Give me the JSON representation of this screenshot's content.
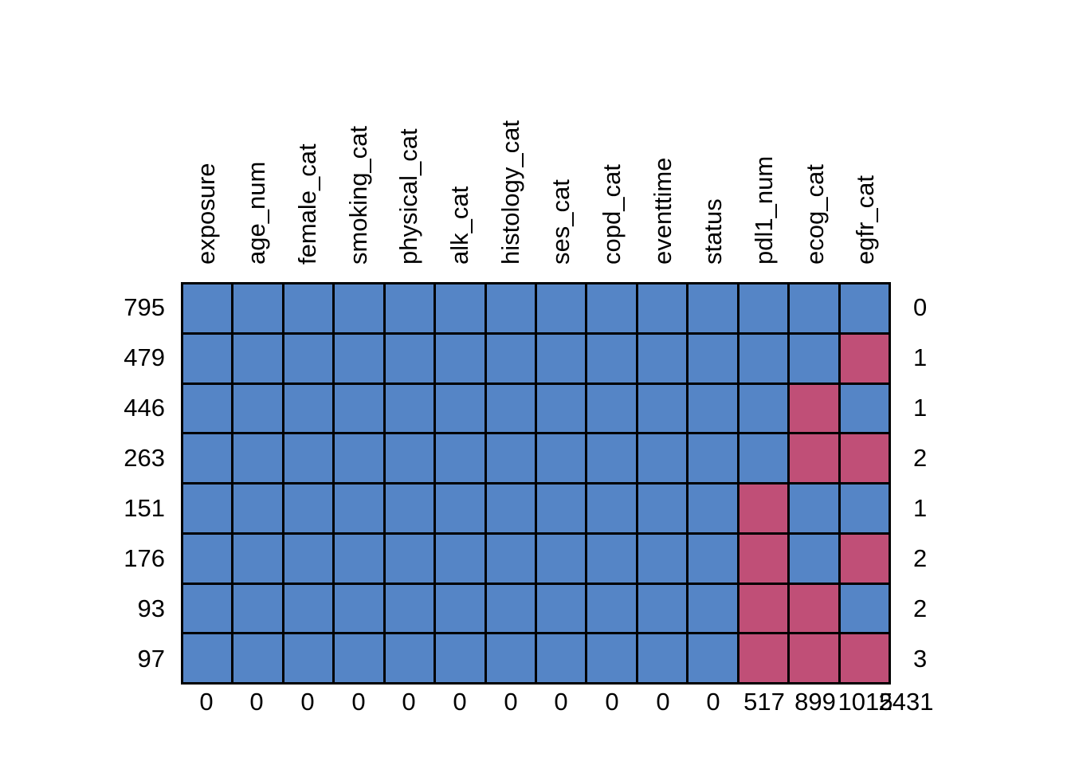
{
  "chart_data": {
    "type": "heatmap",
    "subtype": "missing-data-pattern-plot",
    "title": "",
    "columns": [
      "exposure",
      "age_num",
      "female_cat",
      "smoking_cat",
      "physical_cat",
      "alk_cat",
      "histology_cat",
      "ses_cat",
      "copd_cat",
      "eventtime",
      "status",
      "pdl1_num",
      "ecog_cat",
      "egfr_cat"
    ],
    "rows": [
      {
        "count": "795",
        "n_missing": "0",
        "pattern": [
          1,
          1,
          1,
          1,
          1,
          1,
          1,
          1,
          1,
          1,
          1,
          1,
          1,
          1
        ]
      },
      {
        "count": "479",
        "n_missing": "1",
        "pattern": [
          1,
          1,
          1,
          1,
          1,
          1,
          1,
          1,
          1,
          1,
          1,
          1,
          1,
          0
        ]
      },
      {
        "count": "446",
        "n_missing": "1",
        "pattern": [
          1,
          1,
          1,
          1,
          1,
          1,
          1,
          1,
          1,
          1,
          1,
          1,
          0,
          1
        ]
      },
      {
        "count": "263",
        "n_missing": "2",
        "pattern": [
          1,
          1,
          1,
          1,
          1,
          1,
          1,
          1,
          1,
          1,
          1,
          1,
          0,
          0
        ]
      },
      {
        "count": "151",
        "n_missing": "1",
        "pattern": [
          1,
          1,
          1,
          1,
          1,
          1,
          1,
          1,
          1,
          1,
          1,
          0,
          1,
          1
        ]
      },
      {
        "count": "176",
        "n_missing": "2",
        "pattern": [
          1,
          1,
          1,
          1,
          1,
          1,
          1,
          1,
          1,
          1,
          1,
          0,
          1,
          0
        ]
      },
      {
        "count": "93",
        "n_missing": "2",
        "pattern": [
          1,
          1,
          1,
          1,
          1,
          1,
          1,
          1,
          1,
          1,
          1,
          0,
          0,
          1
        ]
      },
      {
        "count": "97",
        "n_missing": "3",
        "pattern": [
          1,
          1,
          1,
          1,
          1,
          1,
          1,
          1,
          1,
          1,
          1,
          0,
          0,
          0
        ]
      }
    ],
    "col_missing_bottom": [
      "0",
      "0",
      "0",
      "0",
      "0",
      "0",
      "0",
      "0",
      "0",
      "0",
      "0",
      "517",
      "899",
      "1015"
    ],
    "total_missing": "2431",
    "legend": {
      "observed_color": "#5585C6",
      "missing_color": "#C04F77",
      "grid_line_color": "#000000",
      "background_color": "#FFFFFF",
      "observed_value_meaning": "observed",
      "missing_value_meaning": "missing"
    },
    "layout": {
      "legend_position": "none",
      "grid": "on",
      "column_labels_rotated_degrees": 90
    }
  }
}
